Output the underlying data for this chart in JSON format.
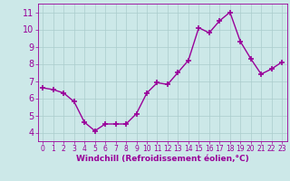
{
  "x": [
    0,
    1,
    2,
    3,
    4,
    5,
    6,
    7,
    8,
    9,
    10,
    11,
    12,
    13,
    14,
    15,
    16,
    17,
    18,
    19,
    20,
    21,
    22,
    23
  ],
  "y": [
    6.6,
    6.5,
    6.3,
    5.8,
    4.6,
    4.1,
    4.5,
    4.5,
    4.5,
    5.1,
    6.3,
    6.9,
    6.8,
    7.5,
    8.2,
    10.1,
    9.8,
    10.5,
    11.0,
    9.3,
    8.3,
    7.4,
    7.7,
    8.1
  ],
  "line_color": "#990099",
  "marker": "+",
  "markersize": 5,
  "linewidth": 1.0,
  "bg_color": "#cce8e8",
  "grid_color": "#aacccc",
  "xlabel": "Windchill (Refroidissement éolien,°C)",
  "xlabel_color": "#990099",
  "tick_color": "#990099",
  "spine_color": "#990099",
  "ylim": [
    3.5,
    11.5
  ],
  "yticks": [
    4,
    5,
    6,
    7,
    8,
    9,
    10,
    11
  ],
  "xlim": [
    -0.5,
    23.5
  ],
  "ytick_fontsize": 7,
  "xtick_fontsize": 5.5,
  "xlabel_fontsize": 6.5
}
